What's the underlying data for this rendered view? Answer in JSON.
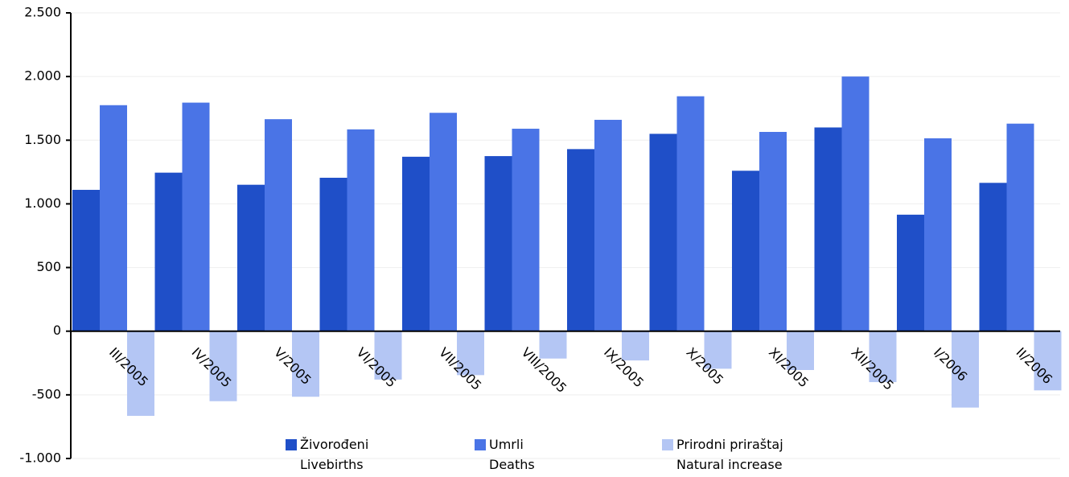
{
  "chart_data": {
    "type": "bar",
    "categories": [
      "III/2005",
      "IV/2005",
      "V/2005",
      "VI/2005",
      "VII/2005",
      "VIII/2005",
      "IX/2005",
      "X/2005",
      "XI/2005",
      "XII/2005",
      "I/2006",
      "II/2006"
    ],
    "series": [
      {
        "name": "Živorođeni\nLivebirths",
        "color": "#1f4fc8",
        "values": [
          1110,
          1245,
          1150,
          1205,
          1370,
          1375,
          1430,
          1550,
          1260,
          1600,
          915,
          1165
        ]
      },
      {
        "name": "Umrli\nDeaths",
        "color": "#4a74e6",
        "values": [
          1775,
          1795,
          1665,
          1585,
          1715,
          1590,
          1660,
          1845,
          1565,
          2000,
          1515,
          1630
        ]
      },
      {
        "name": "Prirodni priraštaj\nNatural increase",
        "color": "#b4c6f4",
        "values": [
          -665,
          -550,
          -515,
          -380,
          -345,
          -215,
          -230,
          -295,
          -305,
          -400,
          -600,
          -465
        ]
      }
    ],
    "ylim": [
      -1000,
      2500
    ],
    "yticks": [
      {
        "value": -1000,
        "label": "-1.000"
      },
      -500,
      0,
      500,
      {
        "value": 1000,
        "label": "1.000"
      },
      {
        "value": 1500,
        "label": "1.500"
      },
      {
        "value": 2000,
        "label": "2.000"
      },
      {
        "value": 2500,
        "label": "2.500"
      }
    ],
    "grid": true
  }
}
